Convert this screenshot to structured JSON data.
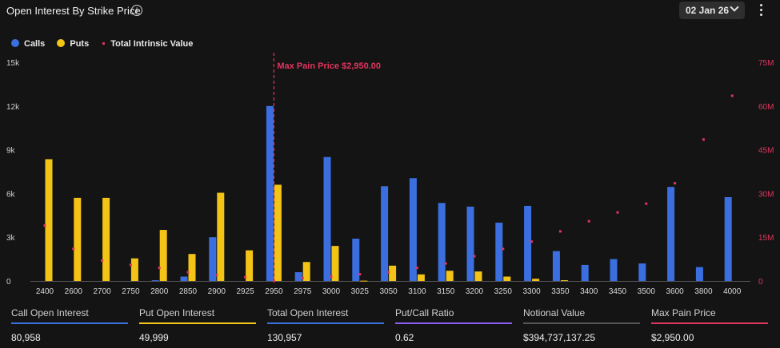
{
  "header": {
    "title": "Open Interest By Strike Price",
    "date": "02 Jan 26"
  },
  "legend": {
    "calls": "Calls",
    "puts": "Puts",
    "tiv": "Total Intrinsic Value"
  },
  "colors": {
    "calls": "#3b6fe0",
    "puts": "#f3c316",
    "tiv": "#e0345e",
    "maxpain": "#e0345e"
  },
  "chart_data": {
    "type": "bar",
    "categories": [
      "2400",
      "2600",
      "2700",
      "2750",
      "2800",
      "2850",
      "2900",
      "2925",
      "2950",
      "2975",
      "3000",
      "3025",
      "3050",
      "3100",
      "3150",
      "3200",
      "3250",
      "3300",
      "3350",
      "3400",
      "3450",
      "3500",
      "3600",
      "3800",
      "4000"
    ],
    "series": [
      {
        "name": "Calls",
        "axis": "left",
        "values": [
          0,
          0,
          0,
          0,
          50,
          300,
          3000,
          0,
          12000,
          600,
          8500,
          2900,
          6500,
          7050,
          5350,
          5100,
          4000,
          5150,
          2050,
          1100,
          1500,
          1200,
          6450,
          950,
          5750
        ]
      },
      {
        "name": "Puts",
        "axis": "left",
        "values": [
          8350,
          5700,
          5700,
          1550,
          3500,
          1850,
          6050,
          2100,
          6600,
          1300,
          2400,
          20,
          1050,
          450,
          700,
          650,
          300,
          150,
          50,
          0,
          0,
          0,
          0,
          0,
          0
        ]
      },
      {
        "name": "Total Intrinsic Value",
        "type": "scatter",
        "axis": "right",
        "values": [
          19000000,
          11000000,
          7000000,
          5500000,
          4500000,
          3000000,
          2000000,
          1300000,
          0,
          1000000,
          1500000,
          2300000,
          3000000,
          4500000,
          6000000,
          8500000,
          11000000,
          13500000,
          17000000,
          20500000,
          23500000,
          26500000,
          33500000,
          48500000,
          63500000
        ]
      }
    ],
    "y_left": {
      "ticks": [
        0,
        3000,
        6000,
        9000,
        12000,
        15000
      ],
      "labels": [
        "0",
        "3k",
        "6k",
        "9k",
        "12k",
        "15k"
      ],
      "range": [
        0,
        15000
      ]
    },
    "y_right": {
      "ticks": [
        0,
        15000000,
        30000000,
        45000000,
        60000000,
        75000000
      ],
      "labels": [
        "0",
        "15M",
        "30M",
        "45M",
        "60M",
        "75M"
      ],
      "range": [
        0,
        75000000
      ]
    },
    "max_pain": {
      "category": "2950",
      "label": "Max Pain Price $2,950.00"
    },
    "grid": false,
    "legend_position": "top-left"
  },
  "stats": [
    {
      "label": "Call Open Interest",
      "value": "80,958",
      "color": "#3b6fe0"
    },
    {
      "label": "Put Open Interest",
      "value": "49,999",
      "color": "#f3c316"
    },
    {
      "label": "Total Open Interest",
      "value": "130,957",
      "color": "#3b6fe0"
    },
    {
      "label": "Put/Call Ratio",
      "value": "0.62",
      "color": "#8a5cf0"
    },
    {
      "label": "Notional Value",
      "value": "$394,737,137.25",
      "color": "#555555"
    },
    {
      "label": "Max Pain Price",
      "value": "$2,950.00",
      "color": "#e0345e"
    }
  ]
}
